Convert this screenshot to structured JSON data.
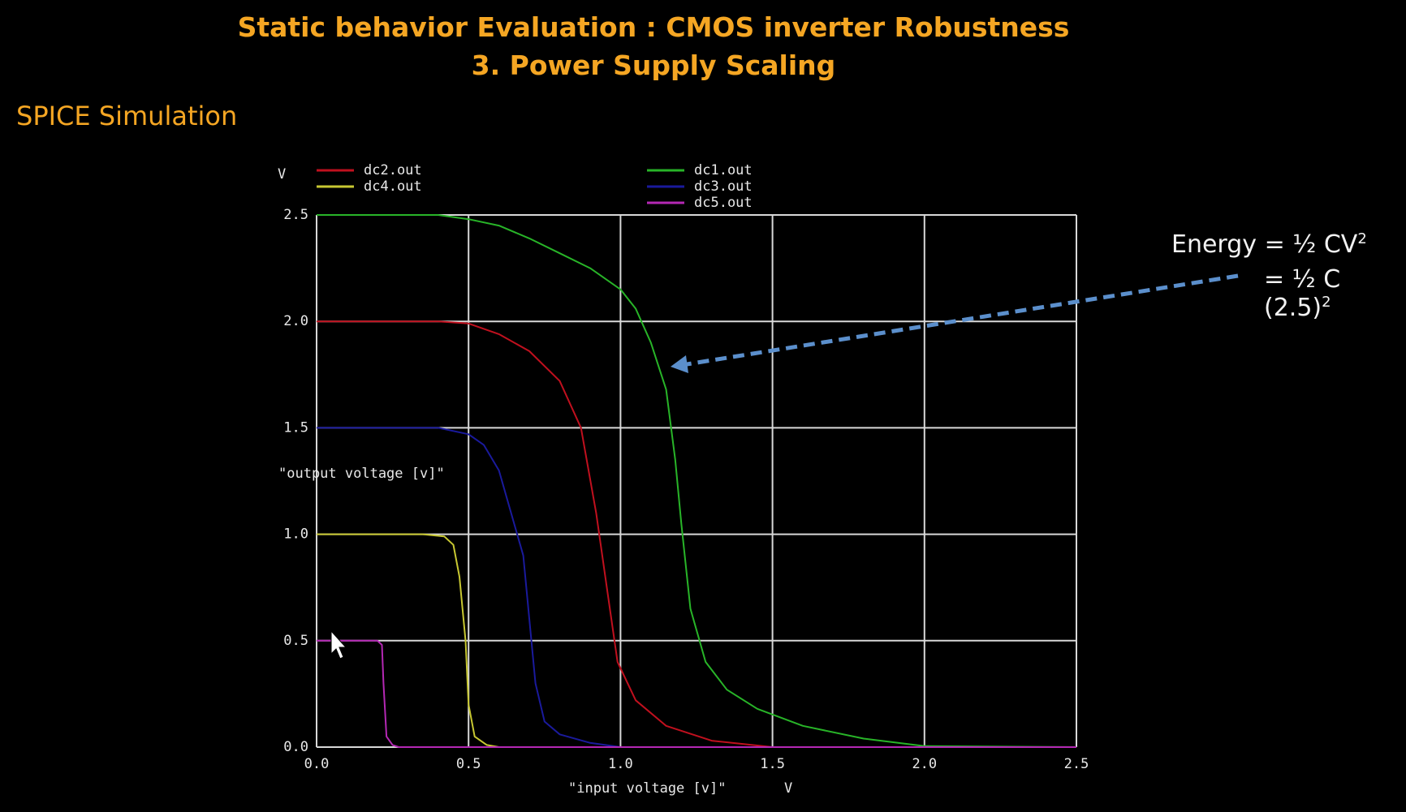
{
  "slide": {
    "title_line1": "Static behavior Evaluation : CMOS inverter Robustness",
    "title_line2": "3. Power Supply Scaling",
    "subtitle": "SPICE Simulation",
    "energy_line1": "Energy = ½ CV",
    "energy_line2": "= ½ C (2.5)",
    "energy_sup": "2"
  },
  "chart_data": {
    "type": "line",
    "xlabel": "\"input voltage [v]\"",
    "xunit": "V",
    "ylabel": "\"output voltage [v]\"",
    "yunit": "V",
    "xlim": [
      0,
      2.5
    ],
    "ylim": [
      0,
      2.5
    ],
    "xticks": [
      "0.0",
      "0.5",
      "1.0",
      "1.5",
      "2.0",
      "2.5"
    ],
    "yticks": [
      "0.0",
      "0.5",
      "1.0",
      "1.5",
      "2.0",
      "2.5"
    ],
    "grid": true,
    "legend_position": "top",
    "series": [
      {
        "name": "dc2.out",
        "color": "#c0101e",
        "points": [
          [
            0,
            2.0
          ],
          [
            0.4,
            2.0
          ],
          [
            0.5,
            1.99
          ],
          [
            0.6,
            1.94
          ],
          [
            0.7,
            1.86
          ],
          [
            0.8,
            1.72
          ],
          [
            0.87,
            1.5
          ],
          [
            0.92,
            1.1
          ],
          [
            0.96,
            0.7
          ],
          [
            0.99,
            0.4
          ],
          [
            1.05,
            0.22
          ],
          [
            1.15,
            0.1
          ],
          [
            1.3,
            0.03
          ],
          [
            1.5,
            0.0
          ],
          [
            2.5,
            0.0
          ]
        ]
      },
      {
        "name": "dc4.out",
        "color": "#c8c832",
        "points": [
          [
            0,
            1.0
          ],
          [
            0.35,
            1.0
          ],
          [
            0.42,
            0.99
          ],
          [
            0.45,
            0.95
          ],
          [
            0.47,
            0.8
          ],
          [
            0.49,
            0.5
          ],
          [
            0.5,
            0.2
          ],
          [
            0.52,
            0.05
          ],
          [
            0.56,
            0.01
          ],
          [
            0.6,
            0.0
          ],
          [
            2.5,
            0.0
          ]
        ]
      },
      {
        "name": "dc1.out",
        "color": "#28b428",
        "points": [
          [
            0,
            2.5
          ],
          [
            0.4,
            2.5
          ],
          [
            0.5,
            2.48
          ],
          [
            0.6,
            2.45
          ],
          [
            0.7,
            2.39
          ],
          [
            0.8,
            2.32
          ],
          [
            0.9,
            2.25
          ],
          [
            1.0,
            2.15
          ],
          [
            1.05,
            2.06
          ],
          [
            1.1,
            1.9
          ],
          [
            1.15,
            1.68
          ],
          [
            1.18,
            1.35
          ],
          [
            1.2,
            1.05
          ],
          [
            1.23,
            0.65
          ],
          [
            1.28,
            0.4
          ],
          [
            1.35,
            0.27
          ],
          [
            1.45,
            0.18
          ],
          [
            1.6,
            0.1
          ],
          [
            1.8,
            0.04
          ],
          [
            2.0,
            0.005
          ],
          [
            2.5,
            0.0
          ]
        ]
      },
      {
        "name": "dc3.out",
        "color": "#1a1a9c",
        "points": [
          [
            0,
            1.5
          ],
          [
            0.4,
            1.5
          ],
          [
            0.5,
            1.47
          ],
          [
            0.55,
            1.42
          ],
          [
            0.6,
            1.3
          ],
          [
            0.64,
            1.1
          ],
          [
            0.68,
            0.9
          ],
          [
            0.7,
            0.6
          ],
          [
            0.72,
            0.3
          ],
          [
            0.75,
            0.12
          ],
          [
            0.8,
            0.06
          ],
          [
            0.9,
            0.02
          ],
          [
            1.0,
            0.0
          ],
          [
            2.5,
            0.0
          ]
        ]
      },
      {
        "name": "dc5.out",
        "color": "#b428b4",
        "points": [
          [
            0,
            0.5
          ],
          [
            0.2,
            0.5
          ],
          [
            0.215,
            0.48
          ],
          [
            0.22,
            0.3
          ],
          [
            0.23,
            0.05
          ],
          [
            0.25,
            0.01
          ],
          [
            0.27,
            0.0
          ],
          [
            2.5,
            0.0
          ]
        ]
      }
    ]
  }
}
